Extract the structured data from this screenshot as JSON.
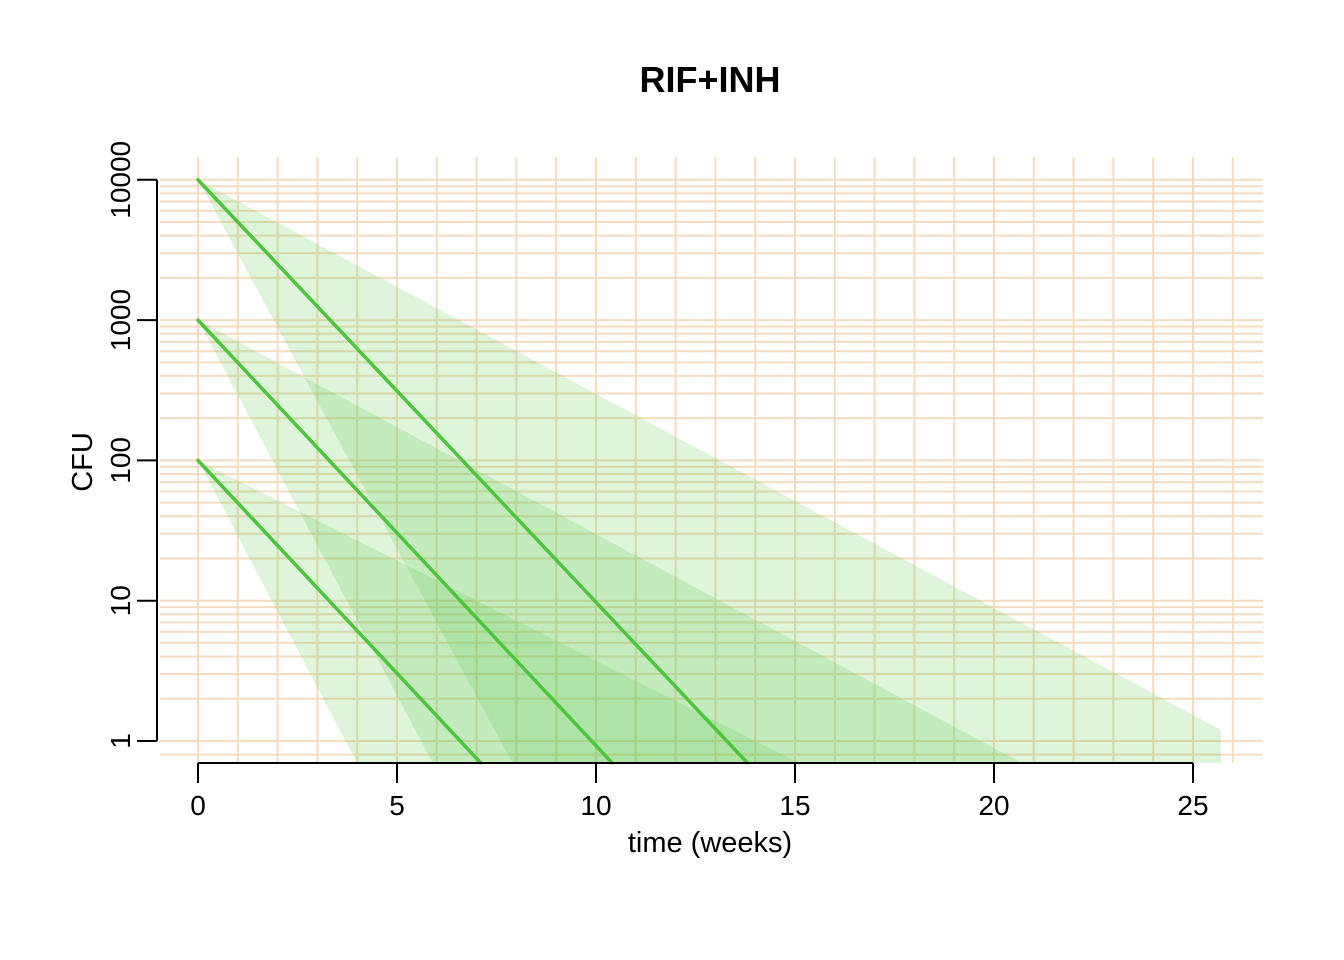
{
  "chart_data": {
    "type": "line",
    "title": "RIF+INH",
    "xlabel": "time (weeks)",
    "ylabel": "CFU",
    "xlim": [
      0,
      25
    ],
    "ylim": [
      1,
      10000
    ],
    "y_scale": "log",
    "x_ticks": [
      0,
      5,
      10,
      15,
      20,
      25
    ],
    "x_tick_labels": [
      "0",
      "5",
      "10",
      "15",
      "20",
      "25"
    ],
    "y_ticks": [
      1,
      10,
      100,
      1000,
      10000
    ],
    "y_tick_labels": [
      "1",
      "10",
      "100",
      "1000",
      "10000"
    ],
    "grid": true,
    "colors": {
      "line": "#4cc43c",
      "band": "#5cc84a",
      "grid": "#f4dcc0",
      "axis": "#000000"
    },
    "series": [
      {
        "x": [
          0,
          13.8
        ],
        "y": [
          10000,
          0.7
        ],
        "band": {
          "lower_end_x": 7.9,
          "upper_end_x": 25.7,
          "upper_end_y": 1.2
        }
      },
      {
        "x": [
          0,
          10.4
        ],
        "y": [
          1000,
          0.7
        ],
        "band": {
          "lower_end_x": 5.9,
          "upper_end_x": 20.7
        }
      },
      {
        "x": [
          0,
          7.1
        ],
        "y": [
          100,
          0.7
        ],
        "band": {
          "lower_end_x": 4.0,
          "upper_end_x": 15.1
        }
      }
    ]
  }
}
